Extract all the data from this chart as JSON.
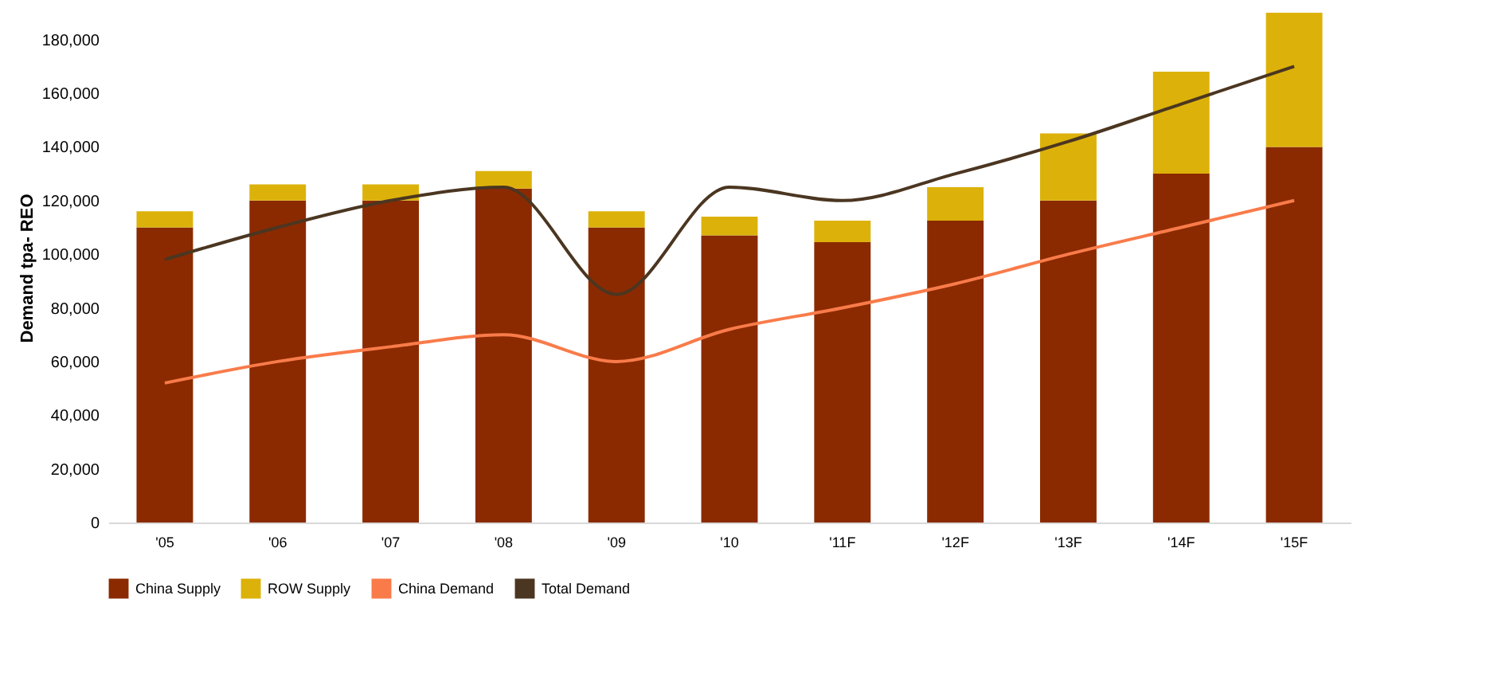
{
  "chart_data": {
    "type": "bar",
    "ylabel": "Demand tpa- REO",
    "categories": [
      "'05",
      "'06",
      "'07",
      "'08",
      "'09",
      "'10",
      "'11F",
      "'12F",
      "'13F",
      "'14F",
      "'15F"
    ],
    "stacked": true,
    "series": [
      {
        "name": "China Supply",
        "color": "#8b2a00",
        "values": [
          110000,
          120000,
          120000,
          124500,
          110000,
          107000,
          104500,
          112500,
          120000,
          130000,
          140000
        ]
      },
      {
        "name": "ROW Supply",
        "color": "#dcb20a",
        "values": [
          6000,
          6000,
          6000,
          6500,
          6000,
          7000,
          8000,
          12500,
          25000,
          38000,
          50000
        ]
      },
      {
        "name": "China Demand",
        "type": "line",
        "color": "#f97b4a",
        "values": [
          52000,
          60000,
          65500,
          70000,
          60000,
          72000,
          80000,
          89000,
          100000,
          110000,
          120000
        ]
      },
      {
        "name": "Total Demand",
        "type": "line",
        "color": "#4b3621",
        "values": [
          98000,
          110000,
          120000,
          125000,
          85000,
          125000,
          120000,
          130000,
          142000,
          156000,
          170000
        ]
      }
    ],
    "ylim": [
      0,
      190000
    ],
    "yticks": [
      0,
      {
        "value": 20000,
        "label": "20,000"
      },
      {
        "value": 40000,
        "label": "40,000"
      },
      {
        "value": 60000,
        "label": "60,000"
      },
      {
        "value": 80000,
        "label": "80,000"
      },
      {
        "value": 100000,
        "label": "100,000"
      },
      {
        "value": 120000,
        "label": "120,000"
      },
      {
        "value": 140000,
        "label": "140,000"
      },
      {
        "value": 160000,
        "label": "160,000"
      },
      {
        "value": 180000,
        "label": "180,000"
      }
    ],
    "grid": false,
    "legend": "bottom"
  }
}
